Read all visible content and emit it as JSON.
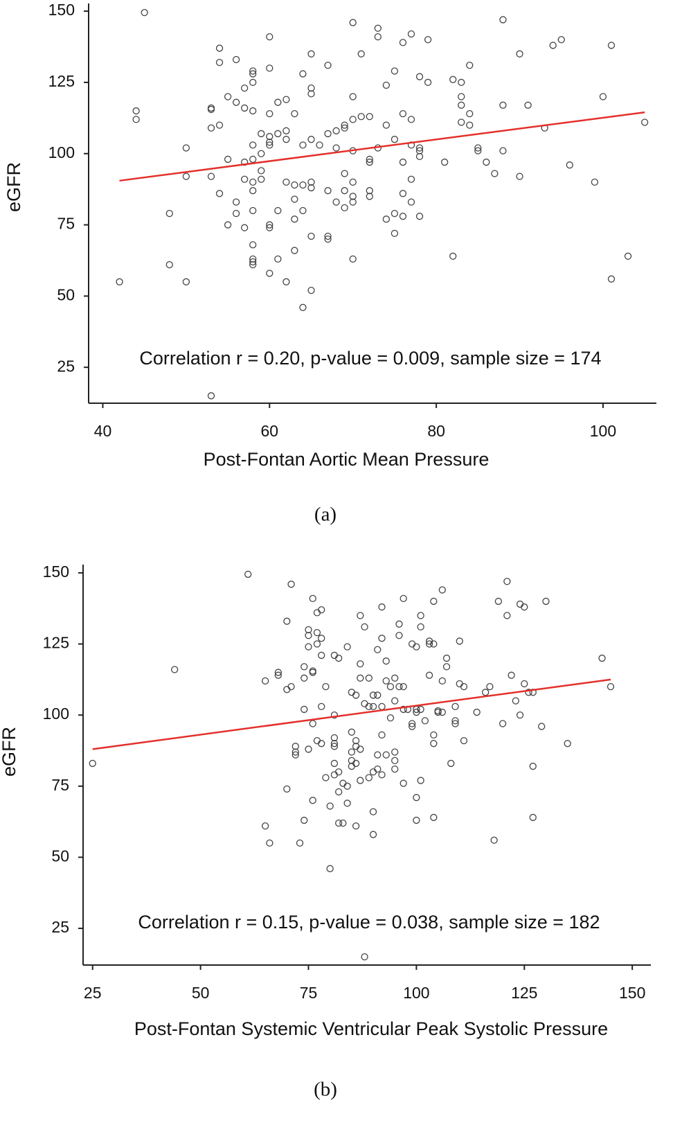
{
  "chart_data": [
    {
      "type": "scatter",
      "xlabel": "Post-Fontan Aortic Mean Pressure",
      "ylabel": "eGFR",
      "annotation": "Correlation r = 0.20, p-value = 0.009, sample size = 174",
      "caption": "(a)",
      "xlim": [
        38.3,
        106.4
      ],
      "ylim": [
        12.4,
        152.7
      ],
      "xticks": [
        40,
        60,
        80,
        100
      ],
      "yticks": [
        25,
        50,
        75,
        100,
        125,
        150
      ],
      "color": "#444444",
      "x": [
        45,
        42,
        44,
        44,
        48,
        48,
        50,
        50,
        50,
        53,
        53,
        53,
        53,
        53,
        54,
        54,
        54,
        54,
        55,
        55,
        55,
        56,
        56,
        56,
        56,
        57,
        57,
        57,
        57,
        57,
        58,
        58,
        58,
        58,
        58,
        58,
        58,
        58,
        58,
        58,
        58,
        58,
        58,
        59,
        59,
        59,
        59,
        60,
        60,
        60,
        60,
        60,
        60,
        60,
        60,
        60,
        61,
        61,
        61,
        61,
        62,
        62,
        62,
        62,
        62,
        63,
        63,
        63,
        63,
        63,
        64,
        64,
        64,
        64,
        64,
        65,
        65,
        65,
        65,
        65,
        65,
        65,
        65,
        66,
        67,
        67,
        67,
        67,
        67,
        68,
        68,
        68,
        69,
        69,
        69,
        69,
        69,
        70,
        70,
        70,
        70,
        70,
        70,
        70,
        70,
        71,
        71,
        72,
        72,
        72,
        72,
        72,
        73,
        73,
        73,
        74,
        74,
        74,
        75,
        75,
        75,
        75,
        76,
        76,
        76,
        76,
        76,
        77,
        77,
        77,
        77,
        77,
        78,
        78,
        78,
        78,
        78,
        79,
        79,
        81,
        82,
        82,
        83,
        83,
        83,
        83,
        84,
        84,
        84,
        85,
        85,
        86,
        87,
        88,
        88,
        88,
        90,
        90,
        91,
        93,
        94,
        95,
        96,
        99,
        100,
        101,
        101,
        103,
        105
      ],
      "values": [
        149.5,
        55,
        115,
        112,
        79,
        61,
        102,
        92,
        55,
        116,
        115.5,
        109,
        92,
        15,
        137,
        132,
        110,
        86,
        120,
        98,
        75,
        133,
        118,
        83,
        79,
        123,
        116,
        97,
        91,
        74,
        129,
        128,
        125,
        115,
        103,
        98,
        90,
        87,
        80,
        68,
        63,
        62,
        61,
        107,
        100,
        94,
        91,
        141,
        130,
        114,
        106,
        104,
        103,
        75,
        74,
        58,
        118,
        107,
        80,
        63,
        119,
        108,
        105,
        90,
        55,
        114,
        89,
        84,
        77,
        66,
        128,
        103,
        89,
        80,
        46,
        135,
        123,
        121,
        105,
        90,
        88,
        71,
        52,
        103,
        131,
        107,
        87,
        71,
        70,
        108,
        102,
        83,
        110,
        109,
        93,
        87,
        81,
        146,
        120,
        112,
        101,
        90,
        85,
        83,
        63,
        135,
        113,
        113,
        98,
        97,
        87,
        85,
        144,
        141,
        102,
        124,
        110,
        77,
        129,
        105,
        79,
        72,
        139,
        114,
        97,
        86,
        78,
        142,
        112,
        103,
        91,
        83,
        127,
        102,
        101,
        99,
        78,
        140,
        125,
        97,
        126,
        64,
        125,
        120,
        117,
        111,
        131,
        114,
        110,
        102,
        101,
        97,
        93,
        147,
        117,
        101,
        135,
        92,
        117,
        109,
        138,
        140,
        96,
        90,
        120,
        138,
        56,
        64,
        111
      ],
      "trend_line": {
        "x": [
          42,
          105
        ],
        "y": [
          90.5,
          114.5
        ],
        "color": "#e3302b"
      }
    },
    {
      "type": "scatter",
      "xlabel": "Post-Fontan Systemic Ventricular Peak Systolic Pressure",
      "ylabel": "eGFR",
      "annotation": "Correlation r = 0.15, p-value = 0.038, sample size = 182",
      "caption": "(b)",
      "xlim": [
        22.8,
        154.3
      ],
      "ylim": [
        12.1,
        152.9
      ],
      "xticks": [
        25,
        50,
        75,
        100,
        125,
        150
      ],
      "yticks": [
        25,
        50,
        75,
        100,
        125,
        150
      ],
      "color": "#444444",
      "x": [
        25,
        44,
        61,
        65,
        65,
        66,
        68,
        68,
        70,
        70,
        70,
        71,
        71,
        72,
        72,
        72,
        73,
        74,
        74,
        74,
        74,
        75,
        75,
        75,
        75,
        76,
        76,
        76,
        76,
        76,
        77,
        77,
        77,
        77,
        78,
        78,
        78,
        78,
        78,
        79,
        79,
        80,
        80,
        81,
        81,
        81,
        81,
        81,
        81,
        81,
        82,
        82,
        82,
        82,
        83,
        83,
        84,
        84,
        84,
        85,
        85,
        85,
        85,
        85,
        86,
        86,
        86,
        86,
        86,
        87,
        87,
        87,
        87,
        87,
        88,
        88,
        88,
        89,
        89,
        89,
        90,
        90,
        90,
        90,
        90,
        91,
        91,
        91,
        91,
        92,
        92,
        92,
        92,
        92,
        93,
        93,
        93,
        94,
        94,
        95,
        95,
        95,
        95,
        95,
        96,
        96,
        96,
        97,
        97,
        97,
        97,
        98,
        99,
        99,
        99,
        100,
        100,
        100,
        100,
        100,
        101,
        101,
        101,
        101,
        102,
        103,
        103,
        103,
        104,
        104,
        104,
        104,
        104,
        105,
        105,
        106,
        106,
        106,
        107,
        107,
        108,
        109,
        109,
        109,
        110,
        110,
        111,
        111,
        114,
        116,
        117,
        118,
        119,
        120,
        121,
        121,
        122,
        123,
        124,
        124,
        125,
        125,
        126,
        127,
        127,
        127,
        129,
        130,
        135,
        143,
        145
      ],
      "values": [
        83,
        116,
        149.5,
        112,
        61,
        55,
        115,
        114,
        133,
        109,
        74,
        146,
        110,
        89,
        87,
        86,
        55,
        117,
        113,
        102,
        63,
        130,
        128,
        124,
        88,
        141,
        115,
        115.5,
        97,
        70,
        136,
        129,
        125,
        91,
        137,
        127,
        121,
        103,
        90,
        110,
        78,
        68,
        46,
        121,
        100,
        92,
        90,
        89,
        83,
        79,
        120,
        80,
        73,
        62,
        76,
        62,
        124,
        69,
        75,
        108,
        94,
        87,
        84,
        82,
        107,
        91,
        89,
        83,
        61,
        135,
        118,
        113,
        88,
        77,
        131,
        104,
        15,
        113,
        103,
        78,
        107,
        103,
        80,
        66,
        58,
        123,
        107,
        86,
        81,
        127,
        103,
        93,
        79,
        138,
        119,
        112,
        86,
        110,
        99,
        113,
        105,
        87,
        84,
        81,
        132,
        128,
        110,
        141,
        110,
        102,
        76,
        102,
        125,
        96,
        97,
        124,
        102,
        101,
        71,
        63,
        77,
        135,
        131,
        102,
        98,
        126,
        125,
        114,
        140,
        125,
        93,
        90,
        64,
        101,
        101.5,
        144,
        112,
        101,
        120,
        117,
        83,
        103,
        98,
        97,
        126,
        111,
        110,
        91,
        101,
        108,
        110,
        56,
        140,
        97,
        147,
        135,
        114,
        105,
        100,
        139,
        138,
        111,
        108,
        108,
        82,
        64,
        96,
        140,
        90,
        120,
        110
      ],
      "trend_line": {
        "x": [
          25,
          145
        ],
        "y": [
          88,
          112.5
        ],
        "color": "#e3302b"
      }
    }
  ]
}
